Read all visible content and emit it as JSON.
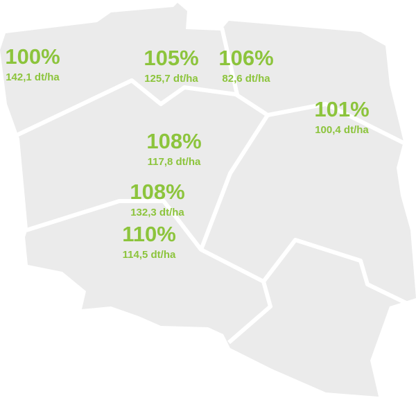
{
  "regions": [
    {
      "percent": "100%",
      "yield": "142,1 dt/ha"
    },
    {
      "percent": "105%",
      "yield": "125,7 dt/ha"
    },
    {
      "percent": "106%",
      "yield": "82,6 dt/ha"
    },
    {
      "percent": "101%",
      "yield": "100,4 dt/ha"
    },
    {
      "percent": "108%",
      "yield": "117,8 dt/ha"
    },
    {
      "percent": "108%",
      "yield": "132,3 dt/ha"
    },
    {
      "percent": "110%",
      "yield": "114,5 dt/ha"
    }
  ]
}
